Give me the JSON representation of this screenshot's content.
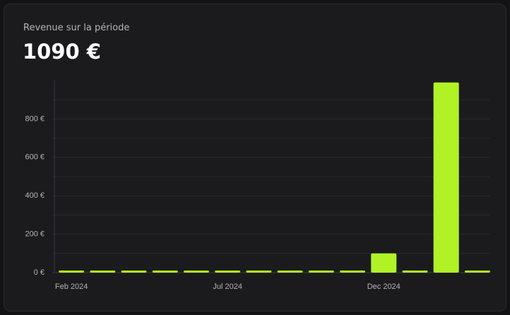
{
  "chart_data": {
    "type": "bar",
    "subtitle": "Revenue sur la période",
    "title": "1090 €",
    "categories": [
      "Feb 2024",
      null,
      null,
      null,
      null,
      "Jul 2024",
      null,
      null,
      null,
      null,
      "Dec 2024",
      null,
      null,
      null
    ],
    "values": [
      0,
      0,
      0,
      0,
      0,
      0,
      0,
      0,
      0,
      0,
      100,
      0,
      990,
      0
    ],
    "color": "#b0f225",
    "ylim": [
      0,
      1000
    ],
    "yticks": [
      {
        "value": 0,
        "label": "0 €"
      },
      {
        "value": 200,
        "label": "200 €"
      },
      {
        "value": 400,
        "label": "400 €"
      },
      {
        "value": 600,
        "label": "600 €"
      },
      {
        "value": 800,
        "label": "800 €"
      }
    ],
    "grid_values": [
      100,
      300,
      500,
      700,
      900
    ],
    "grid": true
  }
}
